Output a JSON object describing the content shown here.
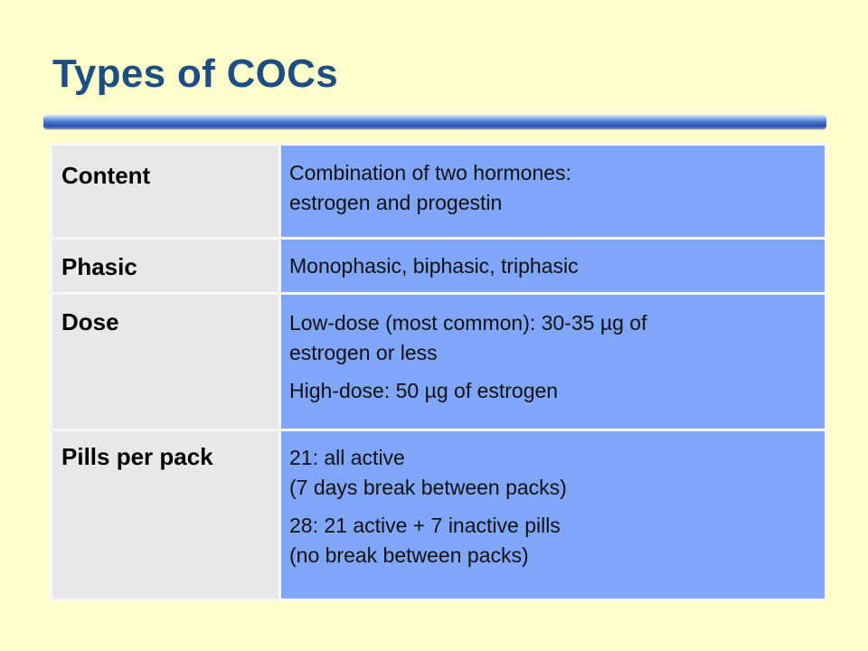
{
  "slide": {
    "title": "Types of COCs"
  },
  "table": {
    "rows": [
      {
        "label": "Content",
        "paragraphs": [
          "Combination of two hormones:\nestrogen and progestin"
        ]
      },
      {
        "label": "Phasic",
        "paragraphs": [
          "Monophasic, biphasic, triphasic"
        ]
      },
      {
        "label": "Dose",
        "paragraphs": [
          "Low-dose (most common): 30-35 µg of\nestrogen or less",
          "High-dose: 50 µg of estrogen"
        ]
      },
      {
        "label": "Pills per pack",
        "paragraphs": [
          "21: all active\n(7 days break between packs)",
          "28: 21 active + 7 inactive pills\n(no break between packs)"
        ]
      }
    ]
  },
  "colors": {
    "background": "#FFFFCC",
    "title": "#1C4E84",
    "label_cell": "#E8E8E8",
    "value_cell": "#80A6FA",
    "rule": "#3A67C0"
  }
}
